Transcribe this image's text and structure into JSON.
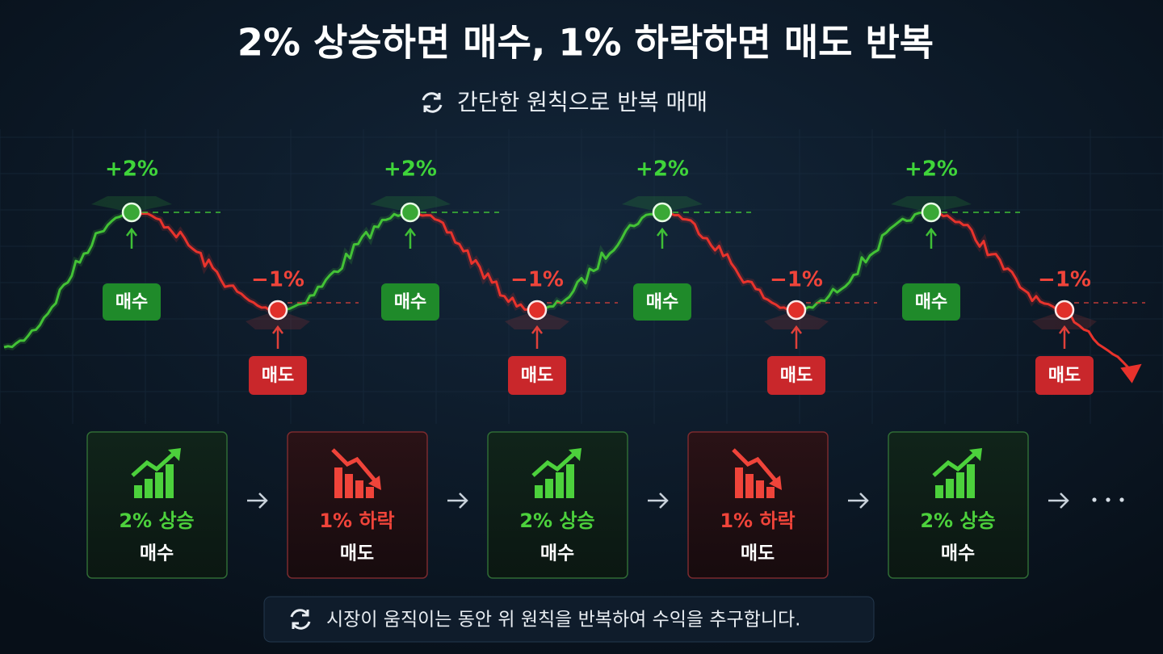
{
  "header": {
    "title": "2% 상승하면 매수, 1% 하락하면 매도 반복",
    "subtitle": "간단한 원칙으로 반복 매매"
  },
  "cycles": [
    {
      "peak_label": "+2%",
      "buy_label": "매수",
      "trough_label": "−1%",
      "sell_label": "매도"
    },
    {
      "peak_label": "+2%",
      "buy_label": "매수",
      "trough_label": "−1%",
      "sell_label": "매도"
    },
    {
      "peak_label": "+2%",
      "buy_label": "매수",
      "trough_label": "−1%",
      "sell_label": "매도"
    },
    {
      "peak_label": "+2%",
      "buy_label": "매수",
      "trough_label": "−1%",
      "sell_label": "매도"
    }
  ],
  "steps": [
    {
      "label": "2% 상승",
      "action": "매수",
      "color": "#4cd13c"
    },
    {
      "label": "1% 하락",
      "action": "매도",
      "color": "#f0443a"
    },
    {
      "label": "2% 상승",
      "action": "매수",
      "color": "#4cd13c"
    },
    {
      "label": "1% 하락",
      "action": "매도",
      "color": "#f0443a"
    },
    {
      "label": "2% 상승",
      "action": "매수",
      "color": "#4cd13c"
    }
  ],
  "footer": {
    "text": "시장이 움직이는 동안 위 원칙을 반복하여 수익을 추구합니다."
  }
}
